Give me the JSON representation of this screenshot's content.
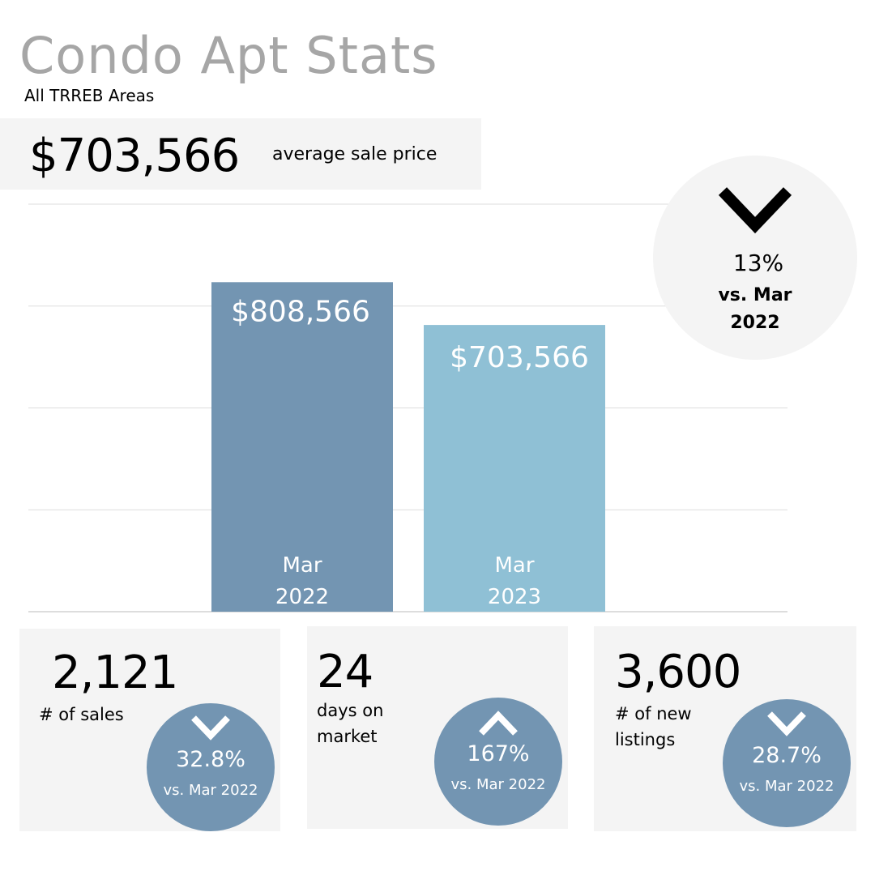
{
  "header": {
    "title": "Condo Apt Stats",
    "subtitle": "All TRREB Areas"
  },
  "hero": {
    "value": "$703,566",
    "label": "average sale price"
  },
  "change": {
    "direction": "down",
    "percent": "13%",
    "vs_line1": "vs. Mar",
    "vs_line2": "2022",
    "icon": "chevron-down-icon"
  },
  "chart_data": {
    "type": "bar",
    "categories": [
      "Mar 2022",
      "Mar 2023"
    ],
    "category_lines": [
      [
        "Mar",
        "2022"
      ],
      [
        "Mar",
        "2023"
      ]
    ],
    "values": [
      808566,
      703566
    ],
    "value_labels": [
      "$808,566",
      "$703,566"
    ],
    "colors": [
      "#7395b2",
      "#8fc0d5"
    ],
    "ylim": [
      0,
      1000000
    ],
    "gridlines": [
      0,
      250000,
      500000,
      750000,
      1000000
    ],
    "grid": true,
    "title": "",
    "xlabel": "",
    "ylabel": ""
  },
  "stats": [
    {
      "value": "2,121",
      "label_lines": [
        "# of sales"
      ],
      "percent": "32.8%",
      "vs": "vs. Mar 2022",
      "direction": "down"
    },
    {
      "value": "24",
      "label_lines": [
        "days on",
        "market"
      ],
      "percent": "167%",
      "vs": "vs. Mar 2022",
      "direction": "up"
    },
    {
      "value": "3,600",
      "label_lines": [
        "# of new",
        "listings"
      ],
      "percent": "28.7%",
      "vs": "vs. Mar 2022",
      "direction": "down"
    }
  ]
}
